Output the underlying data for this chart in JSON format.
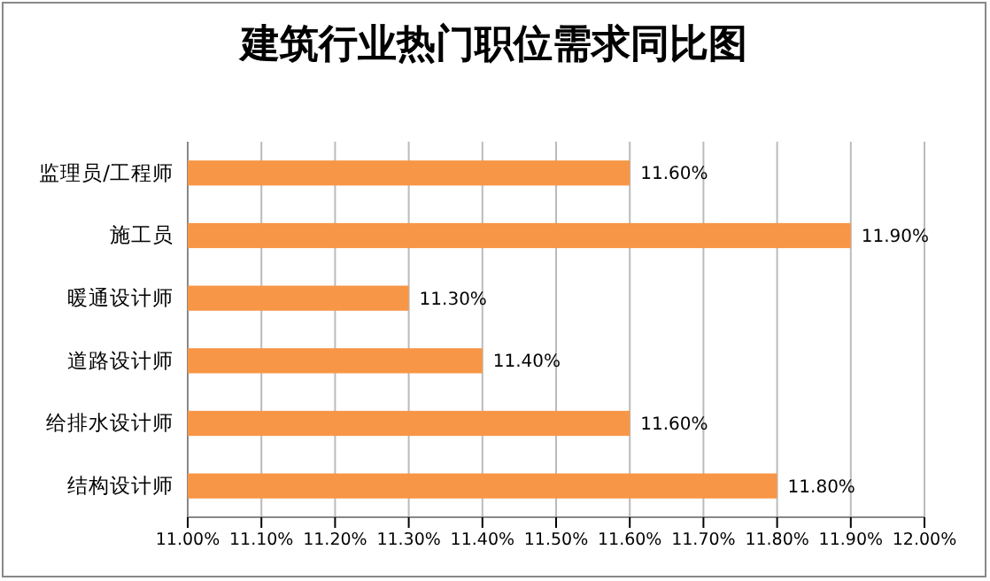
{
  "chart_data": {
    "type": "bar",
    "title": "建筑行业热门职位需求同比图",
    "orientation": "horizontal",
    "categories": [
      "监理员/工程师",
      "施工员",
      "暖通设计师",
      "道路设计师",
      "给排水设计师",
      "结构设计师"
    ],
    "values": [
      11.6,
      11.9,
      11.3,
      11.4,
      11.6,
      11.8
    ],
    "value_labels": [
      "11.60%",
      "11.90%",
      "11.30%",
      "11.40%",
      "11.60%",
      "11.80%"
    ],
    "color": "#f79646",
    "xlim": [
      11,
      12
    ],
    "xticks": [
      {
        "value": 11,
        "label": "11.00%"
      },
      {
        "value": 11.1,
        "label": "11.10%"
      },
      {
        "value": 11.2,
        "label": "11.20%"
      },
      {
        "value": 11.3,
        "label": "11.30%"
      },
      {
        "value": 11.4,
        "label": "11.40%"
      },
      {
        "value": 11.5,
        "label": "11.50%"
      },
      {
        "value": 11.6,
        "label": "11.60%"
      },
      {
        "value": 11.7,
        "label": "11.70%"
      },
      {
        "value": 11.8,
        "label": "11.80%"
      },
      {
        "value": 11.9,
        "label": "11.90%"
      },
      {
        "value": 12,
        "label": "12.00%"
      }
    ],
    "grid": "x"
  }
}
